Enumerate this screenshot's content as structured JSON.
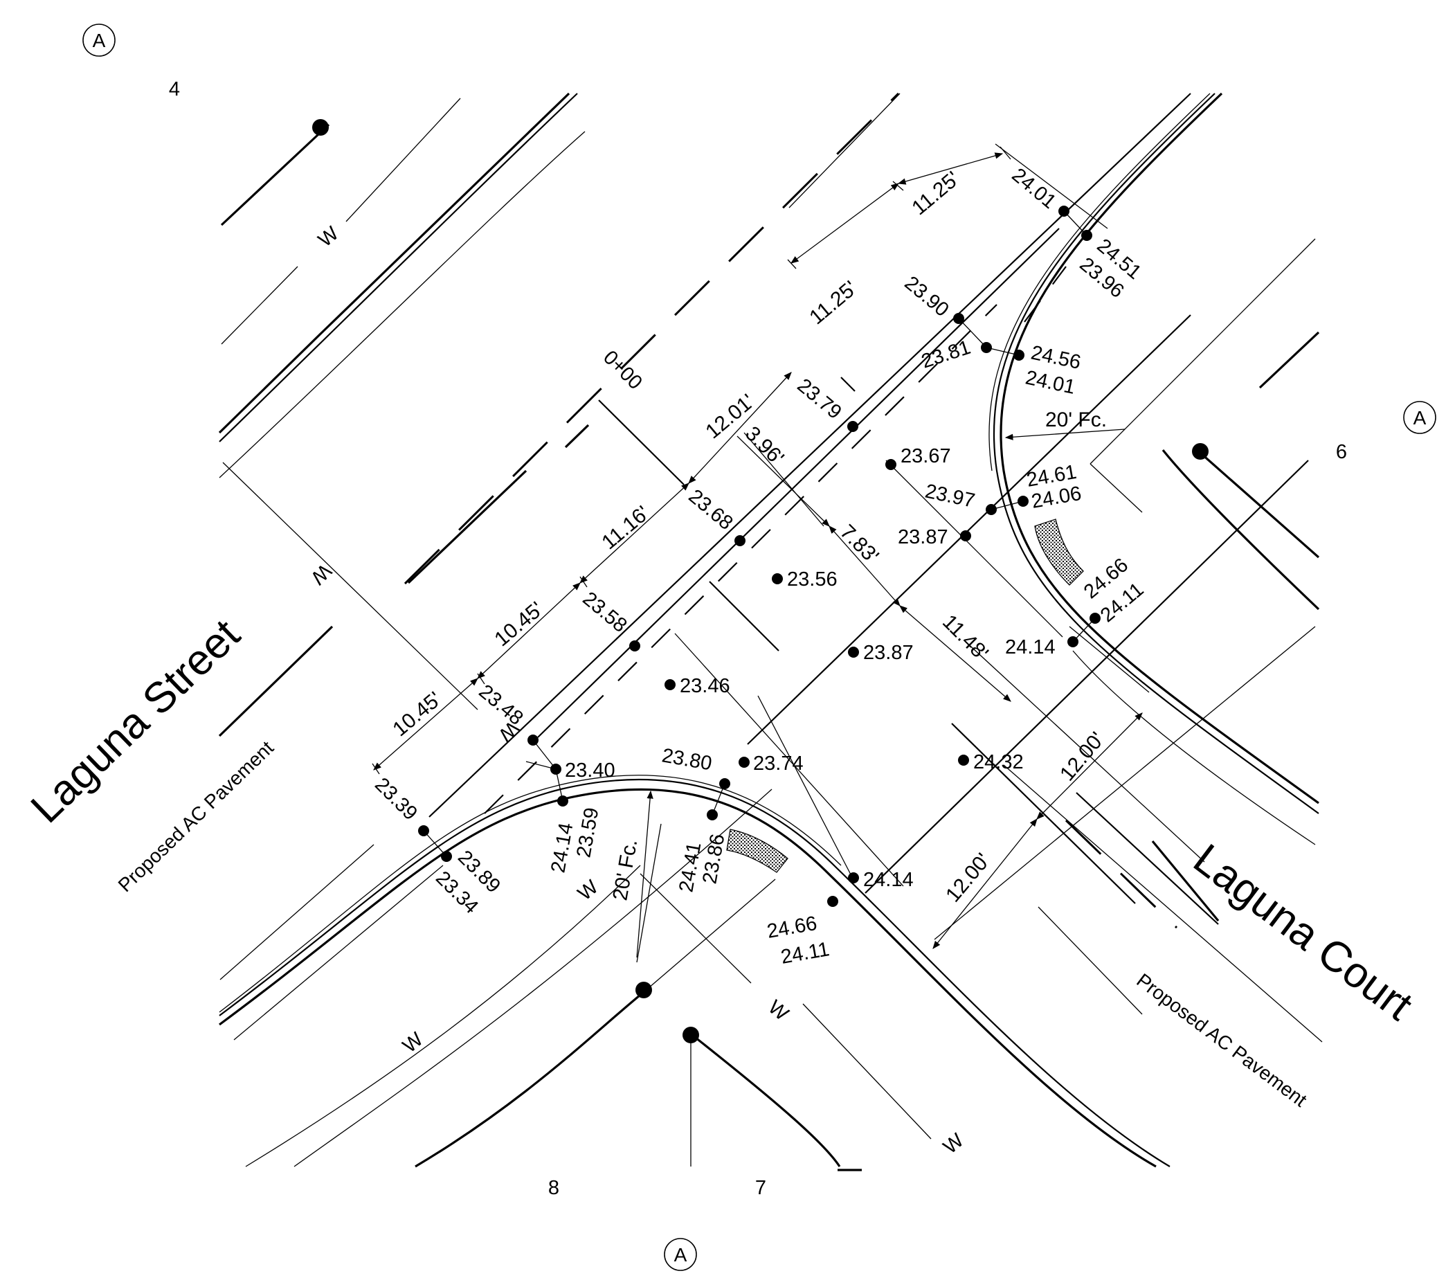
{
  "streets": {
    "laguna_street": "Laguna Street",
    "laguna_court": "Laguna Court"
  },
  "pavement": {
    "left": "Proposed AC Pavement",
    "right": "Proposed AC Pavement"
  },
  "section_markers": {
    "top_left": "A",
    "right": "A",
    "bottom": "A"
  },
  "lots": {
    "lot_4": "4",
    "lot_6": "6",
    "lot_7": "7",
    "lot_8": "8"
  },
  "station": "0+00",
  "water_labels": [
    "W",
    "W",
    "W",
    "W",
    "W",
    "W",
    "W"
  ],
  "dimensions": {
    "d_11_25_top": "11.25'",
    "d_11_25_mid": "11.25'",
    "d_12_01": "12.01'",
    "d_11_16": "11.16'",
    "d_10_45_a": "10.45'",
    "d_10_45_b": "10.45'",
    "d_3_96": "3.96'",
    "d_7_83": "7.83'",
    "d_11_48": "11.48'",
    "d_12_00_a": "12.00'",
    "d_12_00_b": "12.00'",
    "fc_right": "20' Fc.",
    "fc_left": "20' Fc."
  },
  "elevations": {
    "e2401": "24.01",
    "e2451": "24.51",
    "e2396": "23.96",
    "e2390": "23.90",
    "e2381": "23.81",
    "e2456": "24.56",
    "e2401b": "24.01",
    "e2379": "23.79",
    "e2367": "23.67",
    "e2461": "24.61",
    "e2406": "24.06",
    "e2397": "23.97",
    "e2387a": "23.87",
    "e2368": "23.68",
    "e2356": "23.56",
    "e2466r": "24.66",
    "e2411r": "24.11",
    "e2414r": "24.14",
    "e2358": "23.58",
    "e2387b": "23.87",
    "e2346": "23.46",
    "e2348": "23.48",
    "e2374": "23.74",
    "e2432": "24.32",
    "e2340": "23.40",
    "e2380": "23.80",
    "e2339": "23.39",
    "e2389": "23.89",
    "e2334": "23.34",
    "e2414l": "24.14",
    "e2359": "23.59",
    "e2441": "24.41",
    "e2386": "23.86",
    "e2414b": "24.14",
    "e2466l": "24.66",
    "e2411l": "24.11"
  }
}
